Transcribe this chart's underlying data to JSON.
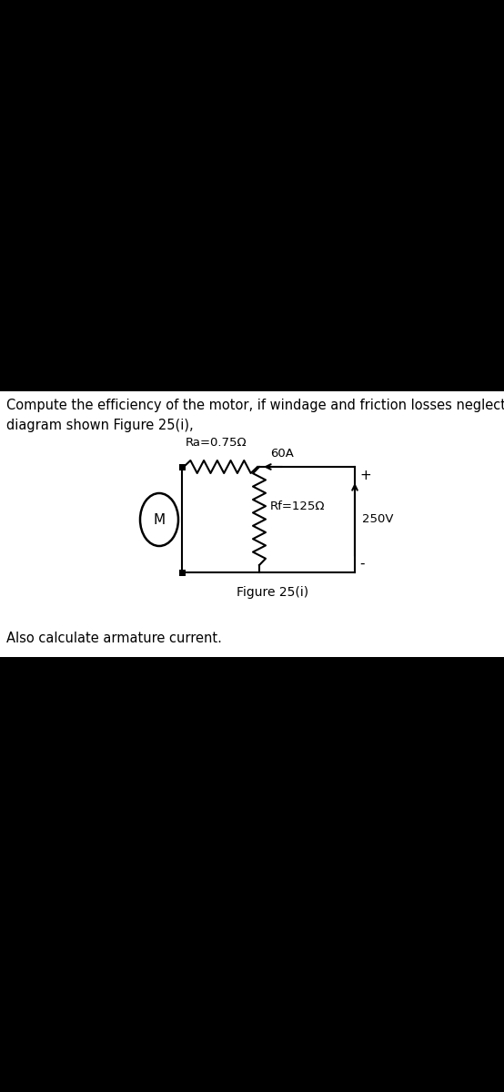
{
  "bg_color": "#000000",
  "panel_bg": "#ffffff",
  "title_text1": "Compute the efficiency of the motor, if windage and friction losses neglected, for the circuit",
  "title_text2": "diagram shown Figure 25(i),",
  "figure_label": "Figure 25(i)",
  "also_text": "Also calculate armature current.",
  "Ra_label": "Ra=0.75Ω",
  "current_label": "60A",
  "Rf_label": "Rf=125Ω",
  "voltage_label": "250V",
  "M_label": "M",
  "plus_label": "+",
  "minus_label": "-",
  "font_size_body": 10.5,
  "font_size_diagram": 9.5
}
